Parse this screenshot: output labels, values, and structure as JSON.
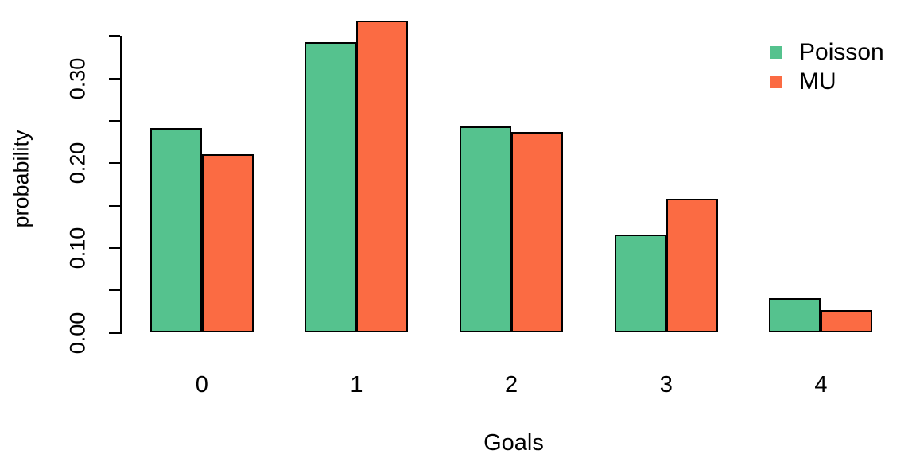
{
  "chart_data": {
    "type": "bar",
    "title": "",
    "xlabel": "Goals",
    "ylabel": "probability",
    "categories": [
      "0",
      "1",
      "2",
      "3",
      "4"
    ],
    "series": [
      {
        "name": "Poisson",
        "color": "#55C28E",
        "values": [
          0.2415,
          0.3432,
          0.2439,
          0.1155,
          0.041
        ]
      },
      {
        "name": "MU",
        "color": "#FB6B43",
        "values": [
          0.2105,
          0.3684,
          0.2368,
          0.1579,
          0.0263
        ]
      }
    ],
    "ylim": [
      0,
      0.35
    ],
    "yticks": [
      0.0,
      0.05,
      0.1,
      0.15,
      0.2,
      0.25,
      0.3,
      0.35
    ],
    "ytick_labels": [
      {
        "value": 0.0,
        "label": "0.00"
      },
      {
        "value": 0.1,
        "label": "0.10"
      },
      {
        "value": 0.2,
        "label": "0.20"
      },
      {
        "value": 0.3,
        "label": "0.30"
      }
    ],
    "legend_position": "top-right",
    "grid": false,
    "bar_border_color": "#000000",
    "text_color": "#000000"
  }
}
